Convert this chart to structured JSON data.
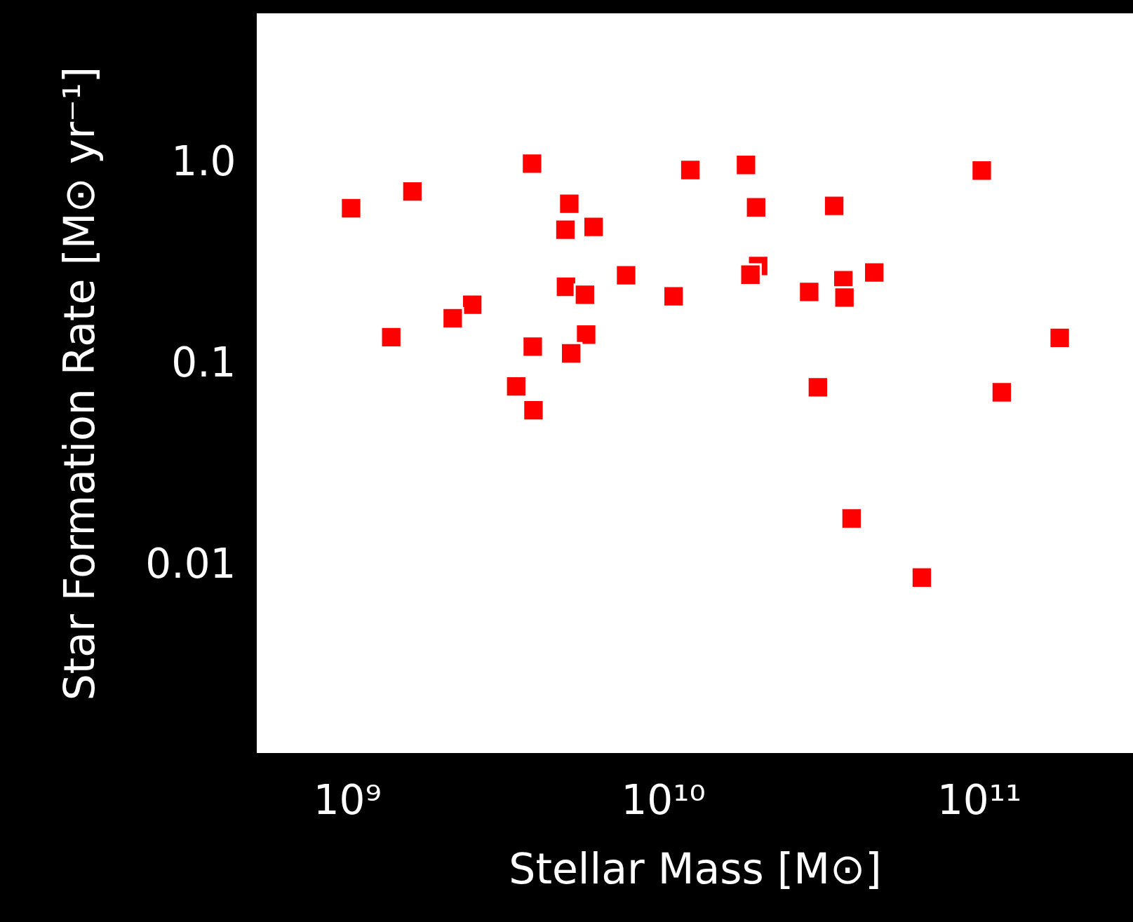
{
  "chart_data": {
    "type": "scatter",
    "xlabel": "Stellar Mass [M⊙]",
    "ylabel": "Star Formation Rate [M⊙ yr⁻¹]",
    "log": "xy",
    "marker": "square",
    "xlim": [
      518000000.0,
      307000000000.0
    ],
    "ylim": [
      0.00117,
      5.52
    ],
    "xticks": [
      {
        "value": 1000000000.0,
        "label": "10⁹"
      },
      {
        "value": 10000000000.0,
        "label": "10¹⁰"
      },
      {
        "value": 100000000000.0,
        "label": "10¹¹"
      }
    ],
    "yticks": [
      {
        "value": 1,
        "label": "1.0"
      },
      0.1,
      0.01
    ],
    "series": [
      {
        "color": "#ff0000",
        "x": [
          1030000000.0,
          1610000000.0,
          3850000000.0,
          12200000000.0,
          18300000000.0,
          102000000000.0,
          5050000000.0,
          19700000000.0,
          34800000000.0,
          4910000000.0,
          6030000000.0,
          7640000000.0,
          20000000000.0,
          18900000000.0,
          46600000000.0,
          4930000000.0,
          5660000000.0,
          10800000000.0,
          29000000000.0,
          37200000000.0,
          37500000000.0,
          2490000000.0,
          2160000000.0,
          1380000000.0,
          5710000000.0,
          3870000000.0,
          5120000000.0,
          180000000000.0,
          3430000000.0,
          30900000000.0,
          118000000000.0,
          3890000000.0,
          39500000000.0,
          65900000000.0
        ],
        "values": [
          0.594,
          0.719,
          0.99,
          0.92,
          0.975,
          0.914,
          0.625,
          0.6,
          0.61,
          0.465,
          0.48,
          0.276,
          0.307,
          0.278,
          0.285,
          0.242,
          0.221,
          0.217,
          0.228,
          0.261,
          0.214,
          0.197,
          0.169,
          0.136,
          0.14,
          0.122,
          0.113,
          0.135,
          0.0774,
          0.0767,
          0.0724,
          0.059,
          0.0171,
          0.0087
        ]
      }
    ]
  }
}
